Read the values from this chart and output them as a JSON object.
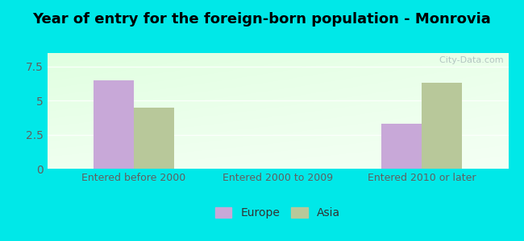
{
  "title": "Year of entry for the foreign-born population - Monrovia",
  "categories": [
    "Entered before 2000",
    "Entered 2000 to 2009",
    "Entered 2010 or later"
  ],
  "europe_values": [
    6.5,
    0,
    3.3
  ],
  "asia_values": [
    4.5,
    0,
    6.3
  ],
  "europe_color": "#c8a8d8",
  "asia_color": "#b8c89a",
  "bar_width": 0.28,
  "ylim": [
    0,
    8.5
  ],
  "yticks": [
    0,
    2.5,
    5,
    7.5
  ],
  "bg_outer": "#00e8e8",
  "watermark": "  City-Data.com",
  "legend_labels": [
    "Europe",
    "Asia"
  ],
  "title_fontsize": 13,
  "tick_fontsize": 10,
  "xlabel_fontsize": 9
}
